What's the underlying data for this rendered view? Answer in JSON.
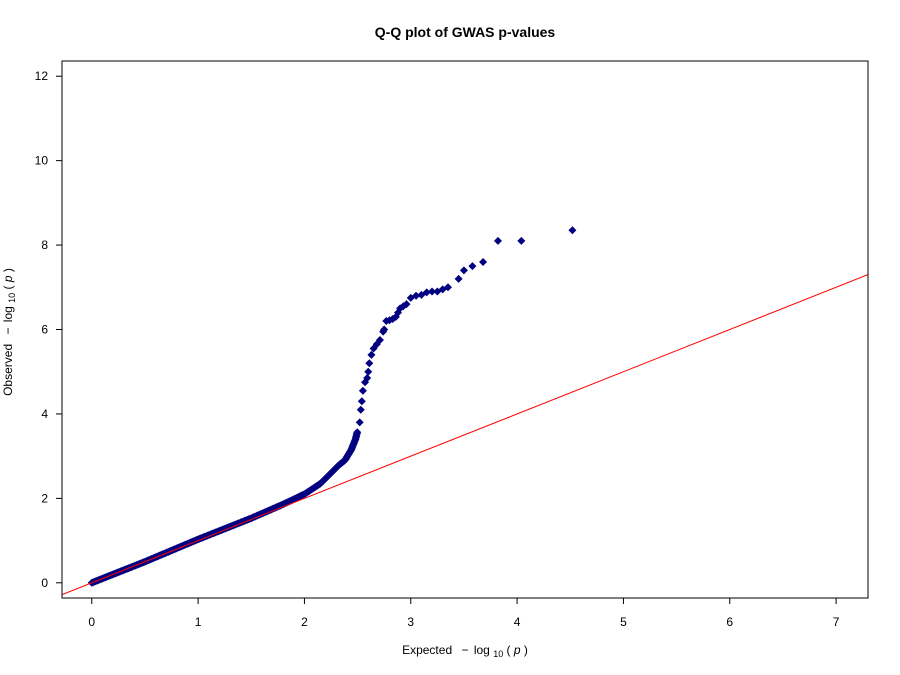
{
  "chart_data": {
    "type": "scatter",
    "title": "Q-Q plot of GWAS p-values",
    "xlabel": {
      "prefix": "Expected",
      "minus": "−",
      "log": "log",
      "base": "10",
      "open": "(",
      "var": "p",
      "close": ")"
    },
    "ylabel": {
      "prefix": "Observed",
      "minus": "−",
      "log": "log",
      "base": "10",
      "open": "(",
      "var": "p",
      "close": ")"
    },
    "xlim": [
      -0.28,
      7.3
    ],
    "ylim": [
      -0.36,
      12.36
    ],
    "xticks": [
      0,
      1,
      2,
      3,
      4,
      5,
      6,
      7
    ],
    "xtick_labels": [
      "0",
      "1",
      "2",
      "3",
      "4",
      "5",
      "6",
      "7"
    ],
    "yticks": [
      0,
      2,
      4,
      6,
      8,
      10,
      12
    ],
    "ytick_labels": [
      "0",
      "2",
      "4",
      "6",
      "8",
      "10",
      "12"
    ],
    "grid": false,
    "reference_line": {
      "slope": 1,
      "intercept": 0,
      "color": "#ff0000"
    },
    "point_color": "#000080",
    "marker": "diamond",
    "curve_points": [
      [
        0.0,
        0.0
      ],
      [
        0.5,
        0.5
      ],
      [
        1.0,
        1.03
      ],
      [
        1.5,
        1.53
      ],
      [
        1.8,
        1.86
      ],
      [
        2.0,
        2.1
      ],
      [
        2.15,
        2.35
      ],
      [
        2.25,
        2.6
      ],
      [
        2.32,
        2.78
      ],
      [
        2.38,
        2.9
      ],
      [
        2.44,
        3.15
      ],
      [
        2.48,
        3.4
      ],
      [
        2.5,
        3.6
      ]
    ],
    "points": [
      [
        2.52,
        3.8
      ],
      [
        2.53,
        4.1
      ],
      [
        2.54,
        4.3
      ],
      [
        2.55,
        4.55
      ],
      [
        2.57,
        4.75
      ],
      [
        2.59,
        4.85
      ],
      [
        2.6,
        5.0
      ],
      [
        2.61,
        5.2
      ],
      [
        2.63,
        5.4
      ],
      [
        2.65,
        5.55
      ],
      [
        2.68,
        5.65
      ],
      [
        2.71,
        5.75
      ],
      [
        2.74,
        5.95
      ],
      [
        2.75,
        6.0
      ],
      [
        2.77,
        6.2
      ],
      [
        2.8,
        6.22
      ],
      [
        2.83,
        6.25
      ],
      [
        2.86,
        6.3
      ],
      [
        2.88,
        6.4
      ],
      [
        2.9,
        6.5
      ],
      [
        2.93,
        6.55
      ],
      [
        2.96,
        6.6
      ],
      [
        3.0,
        6.75
      ],
      [
        3.05,
        6.8
      ],
      [
        3.1,
        6.82
      ],
      [
        3.15,
        6.88
      ],
      [
        3.2,
        6.9
      ],
      [
        3.25,
        6.9
      ],
      [
        3.3,
        6.95
      ],
      [
        3.35,
        7.0
      ],
      [
        3.45,
        7.2
      ],
      [
        3.5,
        7.4
      ],
      [
        3.58,
        7.5
      ],
      [
        3.68,
        7.6
      ],
      [
        3.82,
        8.1
      ],
      [
        4.04,
        8.1
      ],
      [
        4.52,
        8.35
      ]
    ]
  }
}
